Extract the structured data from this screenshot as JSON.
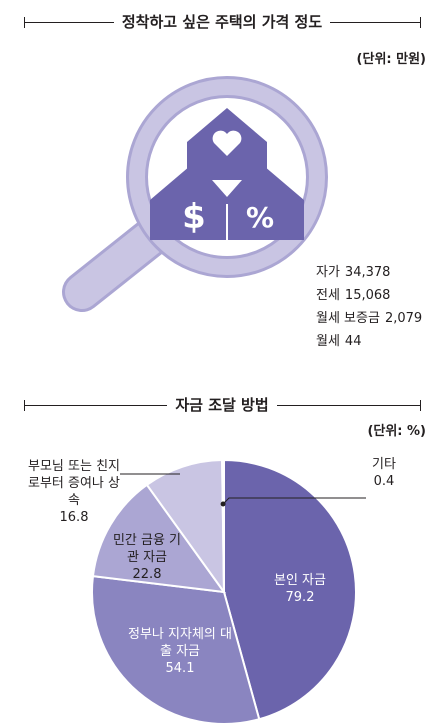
{
  "section1": {
    "title": "정착하고 싶은 주택의 가격 정도",
    "unit": "(단위: 만원)",
    "icons": [
      "magnifier-icon",
      "house-icon",
      "heart-icon",
      "dollar-icon",
      "percent-icon"
    ],
    "prices": [
      {
        "label": "자가",
        "value": "34,378"
      },
      {
        "label": "전세",
        "value": "15,068"
      },
      {
        "label": "월세 보증금",
        "value": "2,079"
      },
      {
        "label": "월세",
        "value": "44"
      }
    ]
  },
  "section2": {
    "title": "자금 조달 방법",
    "unit": "(단위: %)"
  },
  "chart_data": {
    "type": "pie",
    "title": "자금 조달 방법",
    "unit": "%",
    "slices": [
      {
        "label": "본인 자금",
        "value": 79.2,
        "color": "#6b64ac"
      },
      {
        "label": "정부나 지자체의 대출 자금",
        "value": 54.1,
        "color": "#8a85c0"
      },
      {
        "label": "민간 금융 기관 자금",
        "value": 22.8,
        "color": "#aba6d3"
      },
      {
        "label": "부모님 또는 친지로부터 증여나 상속",
        "value": 16.8,
        "color": "#c9c5e3"
      },
      {
        "label": "기타",
        "value": 0.4,
        "color": "#e4e2f1"
      }
    ]
  }
}
